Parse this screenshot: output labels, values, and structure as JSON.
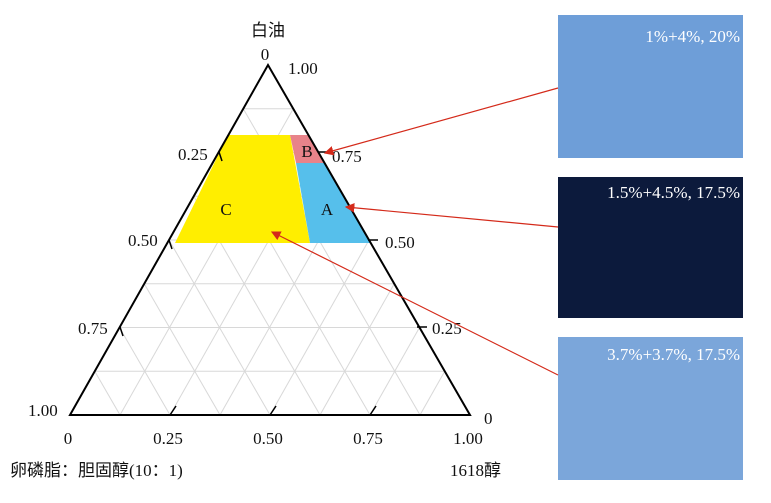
{
  "axes": {
    "top_label": "白油",
    "left_label": "卵磷脂：胆固醇(10：1)",
    "right_label": "1618醇",
    "top_ticks": [
      "0",
      "1.00"
    ],
    "left_ticks": [
      "0.25",
      "0.50",
      "0.75",
      "1.00"
    ],
    "right_ticks": [
      "0.75",
      "0.50",
      "0.25",
      "0"
    ],
    "bottom_ticks": [
      "0",
      "0.25",
      "0.50",
      "0.75",
      "1.00"
    ]
  },
  "regions": [
    {
      "label": "A"
    },
    {
      "label": "B"
    },
    {
      "label": "C"
    }
  ],
  "images": [
    {
      "caption": "1%+4%, 20%"
    },
    {
      "caption": "1.5%+4.5%, 17.5%"
    },
    {
      "caption": "3.7%+3.7%, 17.5%"
    }
  ]
}
